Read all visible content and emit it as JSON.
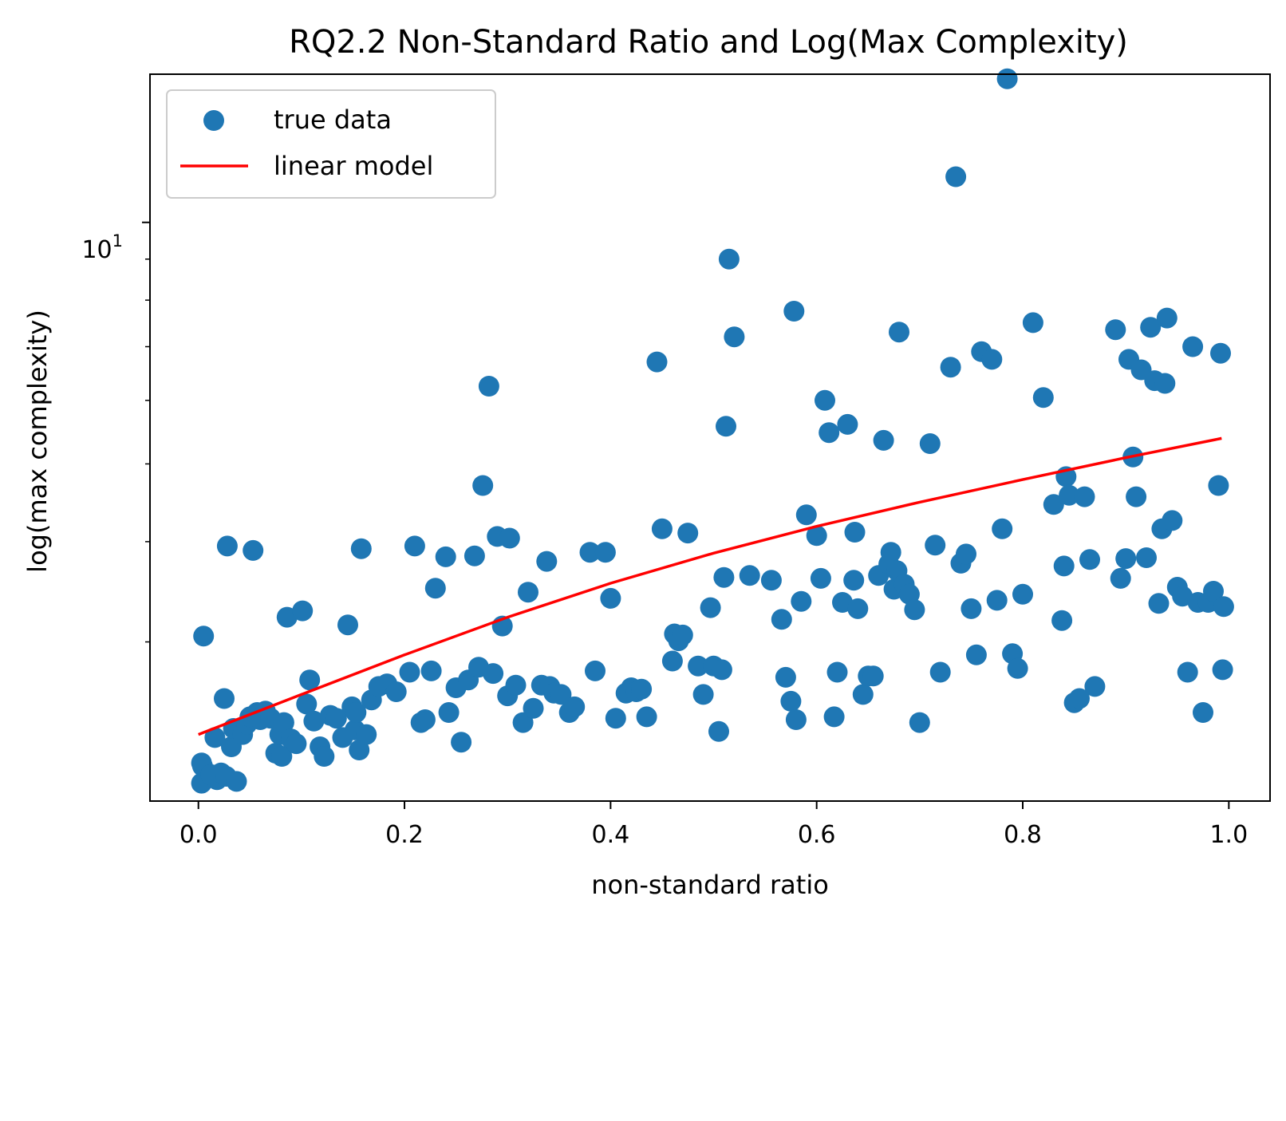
{
  "chart_data": {
    "type": "scatter",
    "title": "RQ2.2 Non-Standard Ratio and Log(Max Complexity)",
    "xlabel": "non-standard ratio",
    "ylabel": "log(max complexity)",
    "xlim": [
      -0.047,
      1.04
    ],
    "ylim": [
      1.9,
      15.3
    ],
    "yscale": "log",
    "xticks": [
      0.0,
      0.2,
      0.4,
      0.6,
      0.8,
      1.0
    ],
    "xtick_labels": [
      "0.0",
      "0.2",
      "0.4",
      "0.6",
      "0.8",
      "1.0"
    ],
    "ytick_major": [
      10
    ],
    "ytick_label": {
      "base": "10",
      "exponent": "1"
    },
    "ytick_minor": [
      3,
      4,
      5,
      6,
      7,
      8,
      9
    ],
    "legend": {
      "placement": "top-left",
      "entries": [
        {
          "label": "true data",
          "kind": "marker",
          "color": "#1f77b4"
        },
        {
          "label": "linear model",
          "kind": "line",
          "color": "#ff0000"
        }
      ]
    },
    "series": [
      {
        "name": "true data",
        "kind": "scatter",
        "color": "#1f77b4",
        "points": [
          [
            0.003,
            2.0
          ],
          [
            0.003,
            2.12
          ],
          [
            0.004,
            2.1
          ],
          [
            0.012,
            2.05
          ],
          [
            0.016,
            2.28
          ],
          [
            0.018,
            2.02
          ],
          [
            0.022,
            2.06
          ],
          [
            0.027,
            2.04
          ],
          [
            0.032,
            2.22
          ],
          [
            0.037,
            2.01
          ],
          [
            0.005,
            3.05
          ],
          [
            0.025,
            2.55
          ],
          [
            0.028,
            3.95
          ],
          [
            0.034,
            2.34
          ],
          [
            0.043,
            2.3
          ],
          [
            0.047,
            2.37
          ],
          [
            0.05,
            2.42
          ],
          [
            0.053,
            3.9
          ],
          [
            0.057,
            2.45
          ],
          [
            0.06,
            2.4
          ],
          [
            0.065,
            2.46
          ],
          [
            0.07,
            2.41
          ],
          [
            0.075,
            2.18
          ],
          [
            0.079,
            2.3
          ],
          [
            0.081,
            2.16
          ],
          [
            0.083,
            2.38
          ],
          [
            0.086,
            3.22
          ],
          [
            0.09,
            2.27
          ],
          [
            0.095,
            2.24
          ],
          [
            0.101,
            3.28
          ],
          [
            0.105,
            2.51
          ],
          [
            0.108,
            2.69
          ],
          [
            0.112,
            2.39
          ],
          [
            0.118,
            2.22
          ],
          [
            0.122,
            2.16
          ],
          [
            0.128,
            2.43
          ],
          [
            0.134,
            2.41
          ],
          [
            0.14,
            2.28
          ],
          [
            0.145,
            3.15
          ],
          [
            0.149,
            2.49
          ],
          [
            0.152,
            2.33
          ],
          [
            0.153,
            2.45
          ],
          [
            0.156,
            2.2
          ],
          [
            0.158,
            3.92
          ],
          [
            0.163,
            2.3
          ],
          [
            0.168,
            2.54
          ],
          [
            0.175,
            2.64
          ],
          [
            0.183,
            2.66
          ],
          [
            0.192,
            2.6
          ],
          [
            0.205,
            2.75
          ],
          [
            0.21,
            3.95
          ],
          [
            0.216,
            2.38
          ],
          [
            0.22,
            2.4
          ],
          [
            0.226,
            2.76
          ],
          [
            0.23,
            3.5
          ],
          [
            0.24,
            3.83
          ],
          [
            0.243,
            2.45
          ],
          [
            0.25,
            2.63
          ],
          [
            0.255,
            2.25
          ],
          [
            0.262,
            2.69
          ],
          [
            0.268,
            3.84
          ],
          [
            0.272,
            2.79
          ],
          [
            0.276,
            4.7
          ],
          [
            0.282,
            6.25
          ],
          [
            0.286,
            2.74
          ],
          [
            0.29,
            4.06
          ],
          [
            0.295,
            3.14
          ],
          [
            0.3,
            2.57
          ],
          [
            0.302,
            4.04
          ],
          [
            0.308,
            2.65
          ],
          [
            0.315,
            2.38
          ],
          [
            0.32,
            3.46
          ],
          [
            0.325,
            2.48
          ],
          [
            0.333,
            2.65
          ],
          [
            0.338,
            3.78
          ],
          [
            0.341,
            2.64
          ],
          [
            0.345,
            2.59
          ],
          [
            0.352,
            2.58
          ],
          [
            0.36,
            2.45
          ],
          [
            0.365,
            2.49
          ],
          [
            0.38,
            3.88
          ],
          [
            0.385,
            2.76
          ],
          [
            0.395,
            3.88
          ],
          [
            0.4,
            3.4
          ],
          [
            0.405,
            2.41
          ],
          [
            0.415,
            2.59
          ],
          [
            0.42,
            2.63
          ],
          [
            0.425,
            2.6
          ],
          [
            0.43,
            2.62
          ],
          [
            0.435,
            2.42
          ],
          [
            0.445,
            6.7
          ],
          [
            0.45,
            4.15
          ],
          [
            0.46,
            2.84
          ],
          [
            0.462,
            3.07
          ],
          [
            0.466,
            3.01
          ],
          [
            0.47,
            3.06
          ],
          [
            0.475,
            4.1
          ],
          [
            0.485,
            2.8
          ],
          [
            0.49,
            2.58
          ],
          [
            0.497,
            3.31
          ],
          [
            0.5,
            2.8
          ],
          [
            0.505,
            2.32
          ],
          [
            0.508,
            2.77
          ],
          [
            0.51,
            3.61
          ],
          [
            0.512,
            5.57
          ],
          [
            0.515,
            9.0
          ],
          [
            0.52,
            7.2
          ],
          [
            0.535,
            3.63
          ],
          [
            0.556,
            3.58
          ],
          [
            0.566,
            3.2
          ],
          [
            0.57,
            2.71
          ],
          [
            0.575,
            2.53
          ],
          [
            0.578,
            7.75
          ],
          [
            0.58,
            2.4
          ],
          [
            0.585,
            3.37
          ],
          [
            0.59,
            4.32
          ],
          [
            0.6,
            4.07
          ],
          [
            0.604,
            3.6
          ],
          [
            0.608,
            6.0
          ],
          [
            0.612,
            5.47
          ],
          [
            0.617,
            2.42
          ],
          [
            0.62,
            2.75
          ],
          [
            0.625,
            3.36
          ],
          [
            0.63,
            5.6
          ],
          [
            0.636,
            3.58
          ],
          [
            0.637,
            4.11
          ],
          [
            0.64,
            3.3
          ],
          [
            0.645,
            2.58
          ],
          [
            0.65,
            2.72
          ],
          [
            0.655,
            2.72
          ],
          [
            0.66,
            3.63
          ],
          [
            0.665,
            5.35
          ],
          [
            0.67,
            3.75
          ],
          [
            0.672,
            3.88
          ],
          [
            0.675,
            3.49
          ],
          [
            0.678,
            3.68
          ],
          [
            0.68,
            7.3
          ],
          [
            0.685,
            3.54
          ],
          [
            0.69,
            3.44
          ],
          [
            0.695,
            3.29
          ],
          [
            0.7,
            2.38
          ],
          [
            0.71,
            5.3
          ],
          [
            0.715,
            3.96
          ],
          [
            0.72,
            2.75
          ],
          [
            0.73,
            6.6
          ],
          [
            0.735,
            11.4
          ],
          [
            0.74,
            3.76
          ],
          [
            0.745,
            3.86
          ],
          [
            0.75,
            3.3
          ],
          [
            0.755,
            2.89
          ],
          [
            0.76,
            6.9
          ],
          [
            0.77,
            6.75
          ],
          [
            0.775,
            3.38
          ],
          [
            0.78,
            4.15
          ],
          [
            0.785,
            15.1
          ],
          [
            0.79,
            2.9
          ],
          [
            0.795,
            2.78
          ],
          [
            0.8,
            3.44
          ],
          [
            0.81,
            7.5
          ],
          [
            0.82,
            6.05
          ],
          [
            0.83,
            4.45
          ],
          [
            0.838,
            3.19
          ],
          [
            0.84,
            3.73
          ],
          [
            0.842,
            4.82
          ],
          [
            0.845,
            4.57
          ],
          [
            0.85,
            2.52
          ],
          [
            0.855,
            2.55
          ],
          [
            0.86,
            4.55
          ],
          [
            0.865,
            3.8
          ],
          [
            0.87,
            2.64
          ],
          [
            0.89,
            7.35
          ],
          [
            0.895,
            3.6
          ],
          [
            0.9,
            3.81
          ],
          [
            0.903,
            6.75
          ],
          [
            0.907,
            5.1
          ],
          [
            0.91,
            4.55
          ],
          [
            0.915,
            6.55
          ],
          [
            0.92,
            3.82
          ],
          [
            0.924,
            7.4
          ],
          [
            0.928,
            6.35
          ],
          [
            0.932,
            3.35
          ],
          [
            0.935,
            4.15
          ],
          [
            0.938,
            6.3
          ],
          [
            0.94,
            7.6
          ],
          [
            0.945,
            4.25
          ],
          [
            0.95,
            3.51
          ],
          [
            0.955,
            3.42
          ],
          [
            0.96,
            2.75
          ],
          [
            0.965,
            7.0
          ],
          [
            0.97,
            3.36
          ],
          [
            0.975,
            2.45
          ],
          [
            0.98,
            3.36
          ],
          [
            0.985,
            3.47
          ],
          [
            0.99,
            4.7
          ],
          [
            0.992,
            6.87
          ],
          [
            0.994,
            2.77
          ],
          [
            0.995,
            3.32
          ]
        ]
      },
      {
        "name": "linear model",
        "kind": "line",
        "color": "#ff0000",
        "points": [
          [
            0.0,
            2.3
          ],
          [
            0.1,
            2.58
          ],
          [
            0.2,
            2.89
          ],
          [
            0.3,
            3.22
          ],
          [
            0.4,
            3.55
          ],
          [
            0.5,
            3.87
          ],
          [
            0.6,
            4.18
          ],
          [
            0.7,
            4.48
          ],
          [
            0.8,
            4.78
          ],
          [
            0.9,
            5.09
          ],
          [
            0.993,
            5.38
          ]
        ]
      }
    ]
  }
}
